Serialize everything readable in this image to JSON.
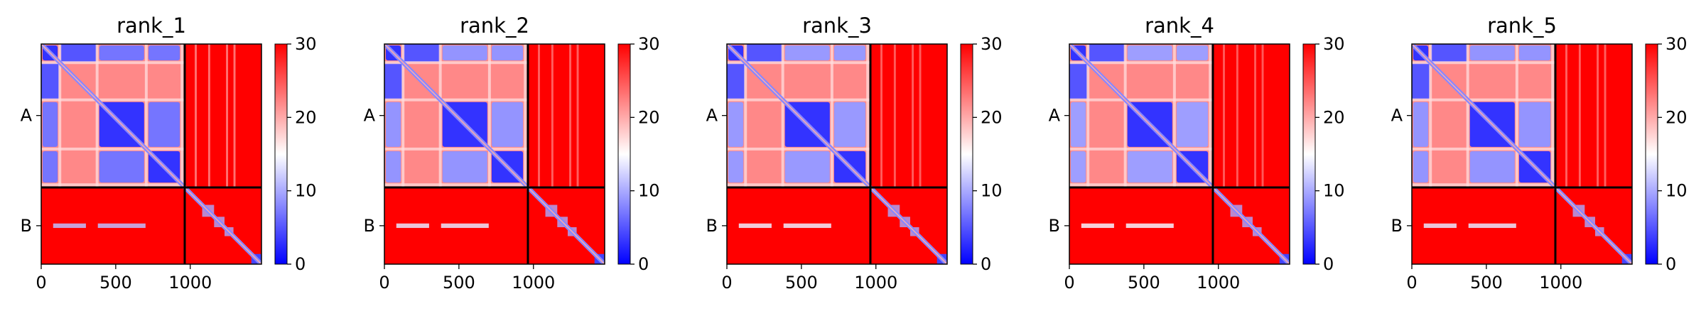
{
  "chart_data": {
    "type": "heatmap",
    "colormap": {
      "name": "bwr",
      "low": "#0000ff",
      "mid": "#ffffff",
      "high": "#ff0000"
    },
    "value_range": [
      0,
      30
    ],
    "colorbar_ticks": [
      "0",
      "10",
      "20",
      "30"
    ],
    "x_range": [
      0,
      1478
    ],
    "x_ticks": [
      0,
      500,
      1000
    ],
    "x_tick_labels": [
      "0",
      "500",
      "1000"
    ],
    "chain_boundary": 963,
    "y_ticks": [
      {
        "label": "A",
        "position": 480
      },
      {
        "label": "B",
        "position": 1220
      }
    ],
    "grid": false,
    "panels": [
      {
        "title": "rank_1",
        "ab_strength": 0.85
      },
      {
        "title": "rank_2",
        "ab_strength": 0.55
      },
      {
        "title": "rank_3",
        "ab_strength": 0.5
      },
      {
        "title": "rank_4",
        "ab_strength": 0.45
      },
      {
        "title": "rank_5",
        "ab_strength": 0.55
      }
    ],
    "domain_blocks": [
      {
        "start": 0,
        "end": 120
      },
      {
        "start": 380,
        "end": 700
      },
      {
        "start": 710,
        "end": 940
      }
    ]
  }
}
